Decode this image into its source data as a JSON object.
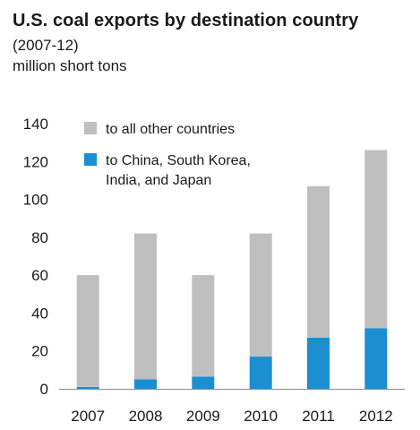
{
  "header": {
    "title": "U.S. coal exports by destination country",
    "subtitle": "(2007-12)",
    "units": "million short tons"
  },
  "colors": {
    "other": "#bfbfbf",
    "asia": "#1b8fd0",
    "axis": "#8c8c8c"
  },
  "chart_data": {
    "type": "bar",
    "stacked": true,
    "title": "U.S. coal exports by destination country",
    "subtitle": "(2007-12)",
    "ylabel": "million short tons",
    "categories": [
      "2007",
      "2008",
      "2009",
      "2010",
      "2011",
      "2012"
    ],
    "series": [
      {
        "name": "to China, South Korea, India, and Japan",
        "values": [
          1,
          5,
          6.5,
          17,
          27,
          32
        ]
      },
      {
        "name": "to all other countries",
        "values": [
          59,
          77,
          53.5,
          65,
          80,
          94
        ]
      }
    ],
    "yticks": [
      "0",
      "20",
      "40",
      "60",
      "80",
      "100",
      "120",
      "140"
    ],
    "ylim": [
      0,
      140
    ],
    "grid": false,
    "legend": {
      "position": "top-left",
      "items": [
        {
          "series": 1,
          "lines": [
            "to all other countries"
          ]
        },
        {
          "series": 0,
          "lines": [
            "to China, South Korea,",
            "India, and Japan"
          ]
        }
      ]
    }
  }
}
